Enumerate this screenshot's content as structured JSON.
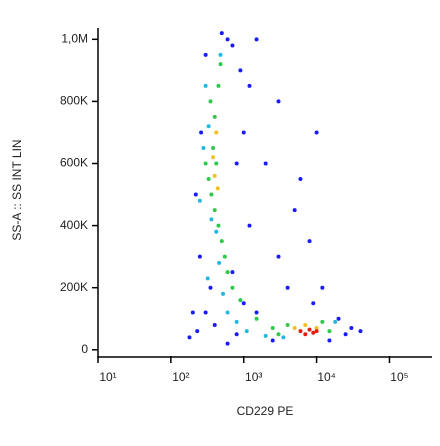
{
  "chart_data": {
    "type": "scatter",
    "x_label": "CD229 PE",
    "y_label": "SS-A :: SS INT LIN",
    "xlog": true,
    "xlim": [
      10,
      360000
    ],
    "ylim": [
      -20000,
      1030000
    ],
    "xticks": [
      {
        "value": 10,
        "label": "10¹"
      },
      {
        "value": 100,
        "label": "10²"
      },
      {
        "value": 1000,
        "label": "10³"
      },
      {
        "value": 10000,
        "label": "10⁴"
      },
      {
        "value": 100000,
        "label": "10⁵"
      }
    ],
    "yticks": [
      0,
      {
        "value": 200000,
        "label": "200K"
      },
      {
        "value": 400000,
        "label": "400K"
      },
      {
        "value": 600000,
        "label": "600K"
      },
      {
        "value": 800000,
        "label": "800K"
      },
      {
        "value": 1000000,
        "label": "1,0M"
      }
    ],
    "series": [
      {
        "color": "#1a1aff",
        "x": [
          200,
          230,
          180,
          300,
          600,
          700,
          900,
          1500,
          1200,
          1000,
          2000,
          5000,
          3000,
          8000,
          12000,
          20000,
          30000,
          40000,
          250,
          700,
          1000,
          1500,
          400,
          600,
          2500,
          15000,
          220,
          260,
          800,
          1200,
          3000,
          6000,
          10000,
          4000,
          9000,
          500,
          350,
          300,
          800,
          25000
        ],
        "values": [
          120000,
          60000,
          40000,
          950000,
          1000000,
          980000,
          900000,
          1000000,
          850000,
          700000,
          600000,
          450000,
          300000,
          350000,
          200000,
          100000,
          70000,
          60000,
          300000,
          250000,
          150000,
          120000,
          80000,
          20000,
          30000,
          30000,
          500000,
          700000,
          600000,
          400000,
          800000,
          550000,
          700000,
          200000,
          150000,
          1020000,
          200000,
          120000,
          50000,
          50000
        ]
      },
      {
        "color": "#22b8e0",
        "x": [
          300,
          330,
          360,
          420,
          460,
          520,
          280,
          320,
          600,
          800,
          1100,
          2000,
          3500,
          18000,
          250,
          480
        ],
        "values": [
          850000,
          720000,
          420000,
          380000,
          280000,
          180000,
          650000,
          230000,
          120000,
          90000,
          60000,
          45000,
          40000,
          90000,
          480000,
          950000
        ]
      },
      {
        "color": "#2ec84a",
        "x": [
          350,
          400,
          450,
          380,
          420,
          330,
          360,
          400,
          450,
          500,
          550,
          600,
          700,
          900,
          1500,
          2500,
          4000,
          12000,
          15000,
          3000,
          480,
          300
        ],
        "values": [
          800000,
          750000,
          850000,
          650000,
          600000,
          550000,
          500000,
          450000,
          400000,
          350000,
          300000,
          250000,
          200000,
          160000,
          100000,
          70000,
          80000,
          90000,
          60000,
          50000,
          920000,
          600000
        ]
      },
      {
        "color": "#f0c020",
        "x": [
          420,
          400,
          440,
          380,
          5000,
          7000,
          10000
        ],
        "values": [
          700000,
          560000,
          520000,
          620000,
          70000,
          80000,
          70000
        ]
      },
      {
        "color": "#e02010",
        "x": [
          6000,
          8000,
          9000,
          7000,
          10000
        ],
        "values": [
          60000,
          65000,
          55000,
          50000,
          60000
        ]
      }
    ]
  }
}
